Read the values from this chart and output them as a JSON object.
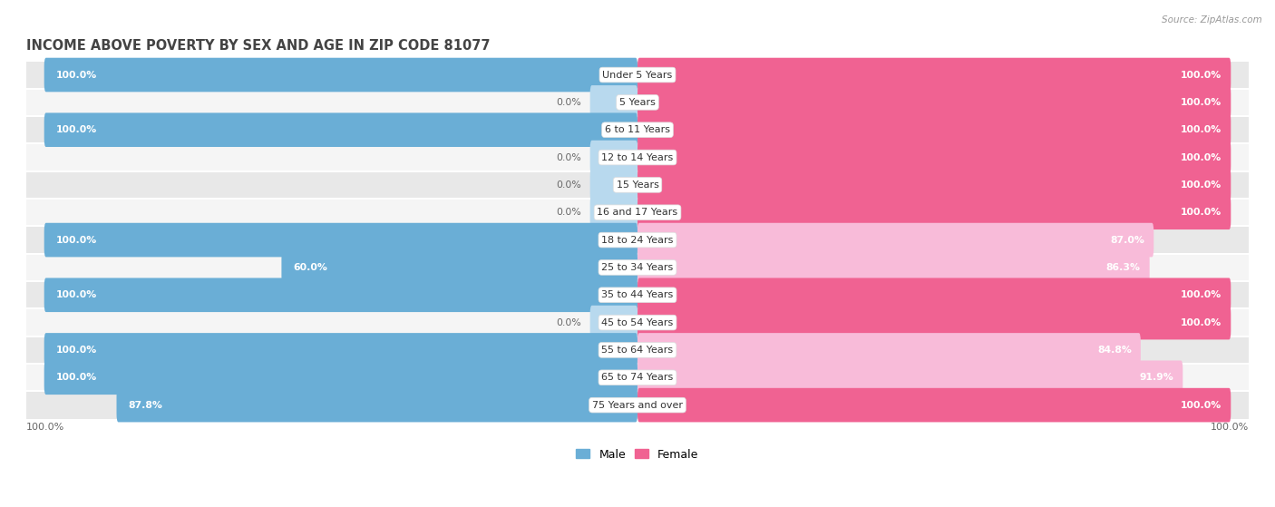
{
  "title": "INCOME ABOVE POVERTY BY SEX AND AGE IN ZIP CODE 81077",
  "source": "Source: ZipAtlas.com",
  "categories": [
    "Under 5 Years",
    "5 Years",
    "6 to 11 Years",
    "12 to 14 Years",
    "15 Years",
    "16 and 17 Years",
    "18 to 24 Years",
    "25 to 34 Years",
    "35 to 44 Years",
    "45 to 54 Years",
    "55 to 64 Years",
    "65 to 74 Years",
    "75 Years and over"
  ],
  "male_values": [
    100.0,
    0.0,
    100.0,
    0.0,
    0.0,
    0.0,
    100.0,
    60.0,
    100.0,
    0.0,
    100.0,
    100.0,
    87.8
  ],
  "female_values": [
    100.0,
    100.0,
    100.0,
    100.0,
    100.0,
    100.0,
    87.0,
    86.3,
    100.0,
    100.0,
    84.8,
    91.9,
    100.0
  ],
  "male_color": "#6aaed6",
  "male_color_light": "#b8d9ee",
  "female_color": "#f06292",
  "female_color_light": "#f8bbd9",
  "male_label": "Male",
  "female_label": "Female",
  "bg_color_dark": "#e8e8e8",
  "bg_color_light": "#f5f5f5",
  "bar_height": 0.62,
  "font_size_cat": 8.0,
  "font_size_title": 10.5,
  "font_size_values": 7.8,
  "font_size_axis": 8.0,
  "x_range": 100,
  "zero_stub": 8,
  "title_color": "#444444",
  "value_color_inside": "#ffffff",
  "value_color_outside": "#666666"
}
